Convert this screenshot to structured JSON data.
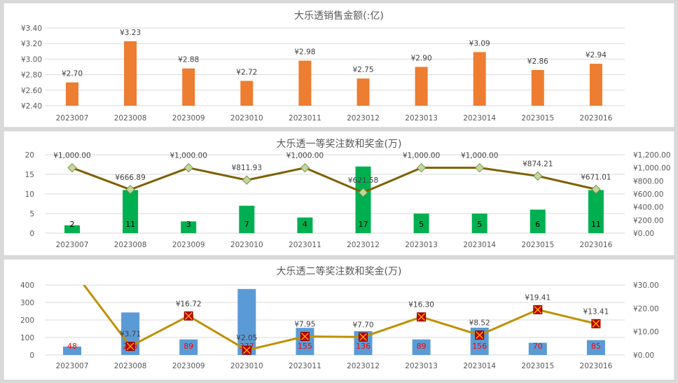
{
  "chart_data": [
    {
      "type": "bar",
      "title": "大乐透销售金额(:亿)",
      "categories": [
        "2023007",
        "2023008",
        "2023009",
        "2023010",
        "2023011",
        "2023012",
        "2023013",
        "2023014",
        "2023015",
        "2023016"
      ],
      "values": [
        2.7,
        3.23,
        2.88,
        2.72,
        2.98,
        2.75,
        2.9,
        3.09,
        2.86,
        2.94
      ],
      "value_labels": [
        "¥2.70",
        "¥3.23",
        "¥2.88",
        "¥2.72",
        "¥2.98",
        "¥2.75",
        "¥2.90",
        "¥3.09",
        "¥2.86",
        "¥2.94"
      ],
      "ylim": [
        2.4,
        3.4
      ],
      "yticks": [
        "¥2.40",
        "¥2.60",
        "¥2.80",
        "¥3.00",
        "¥3.20",
        "¥3.40"
      ],
      "grid": true,
      "colors": {
        "bar": "#ED7D31"
      }
    },
    {
      "type": "bar+line",
      "title": "大乐透一等奖注数和奖金(万)",
      "categories": [
        "2023007",
        "2023008",
        "2023009",
        "2023010",
        "2023011",
        "2023012",
        "2023013",
        "2023014",
        "2023015",
        "2023016"
      ],
      "bars": [
        2,
        11,
        3,
        7,
        4,
        17,
        5,
        5,
        6,
        11
      ],
      "line": [
        1000.0,
        666.89,
        1000.0,
        811.93,
        1000.0,
        621.58,
        1000.0,
        1000.0,
        874.21,
        671.01
      ],
      "line_labels": [
        "¥1,000.00",
        "¥666.89",
        "¥1,000.00",
        "¥811.93",
        "¥1,000.00",
        "¥621.58",
        "¥1,000.00",
        "¥1,000.00",
        "¥874.21",
        "¥671.01"
      ],
      "ylim_left": [
        0,
        20
      ],
      "yticks_left": [
        "0",
        "5",
        "10",
        "15",
        "20"
      ],
      "ylim_right": [
        0,
        1200
      ],
      "yticks_right": [
        "¥0.00",
        "¥200.00",
        "¥400.00",
        "¥600.00",
        "¥800.00",
        "¥1,000.00",
        "¥1,200.00"
      ],
      "grid": true,
      "colors": {
        "bar": "#00B050",
        "line": "#7F6000",
        "marker": "#C4D79B",
        "bar_label": "#000000"
      }
    },
    {
      "type": "bar+line",
      "title": "大乐透二等奖注数和奖金(万)",
      "categories": [
        "2023007",
        "2023008",
        "2023009",
        "2023010",
        "2023011",
        "2023012",
        "2023013",
        "2023014",
        "2023015",
        "2023016"
      ],
      "bars": [
        48,
        243,
        89,
        377,
        155,
        136,
        89,
        156,
        70,
        85
      ],
      "line": [
        36.7,
        3.71,
        16.72,
        2.05,
        7.95,
        7.7,
        16.3,
        8.52,
        19.41,
        13.41
      ],
      "line_labels": [
        "",
        "¥3.71",
        "¥16.72",
        "¥2.05",
        "¥7.95",
        "¥7.70",
        "¥16.30",
        "¥8.52",
        "¥19.41",
        "¥13.41"
      ],
      "ylim_left": [
        0,
        400
      ],
      "yticks_left": [
        "0",
        "100",
        "200",
        "300",
        "400"
      ],
      "ylim_right": [
        0,
        30
      ],
      "yticks_right": [
        "¥0.00",
        "¥10.00",
        "¥20.00",
        "¥30.00"
      ],
      "grid": true,
      "colors": {
        "bar": "#5B9BD5",
        "line": "#BF9000",
        "marker": "#C00000",
        "marker_x": "#FFC000",
        "bar_label": "#FF0000"
      }
    }
  ]
}
